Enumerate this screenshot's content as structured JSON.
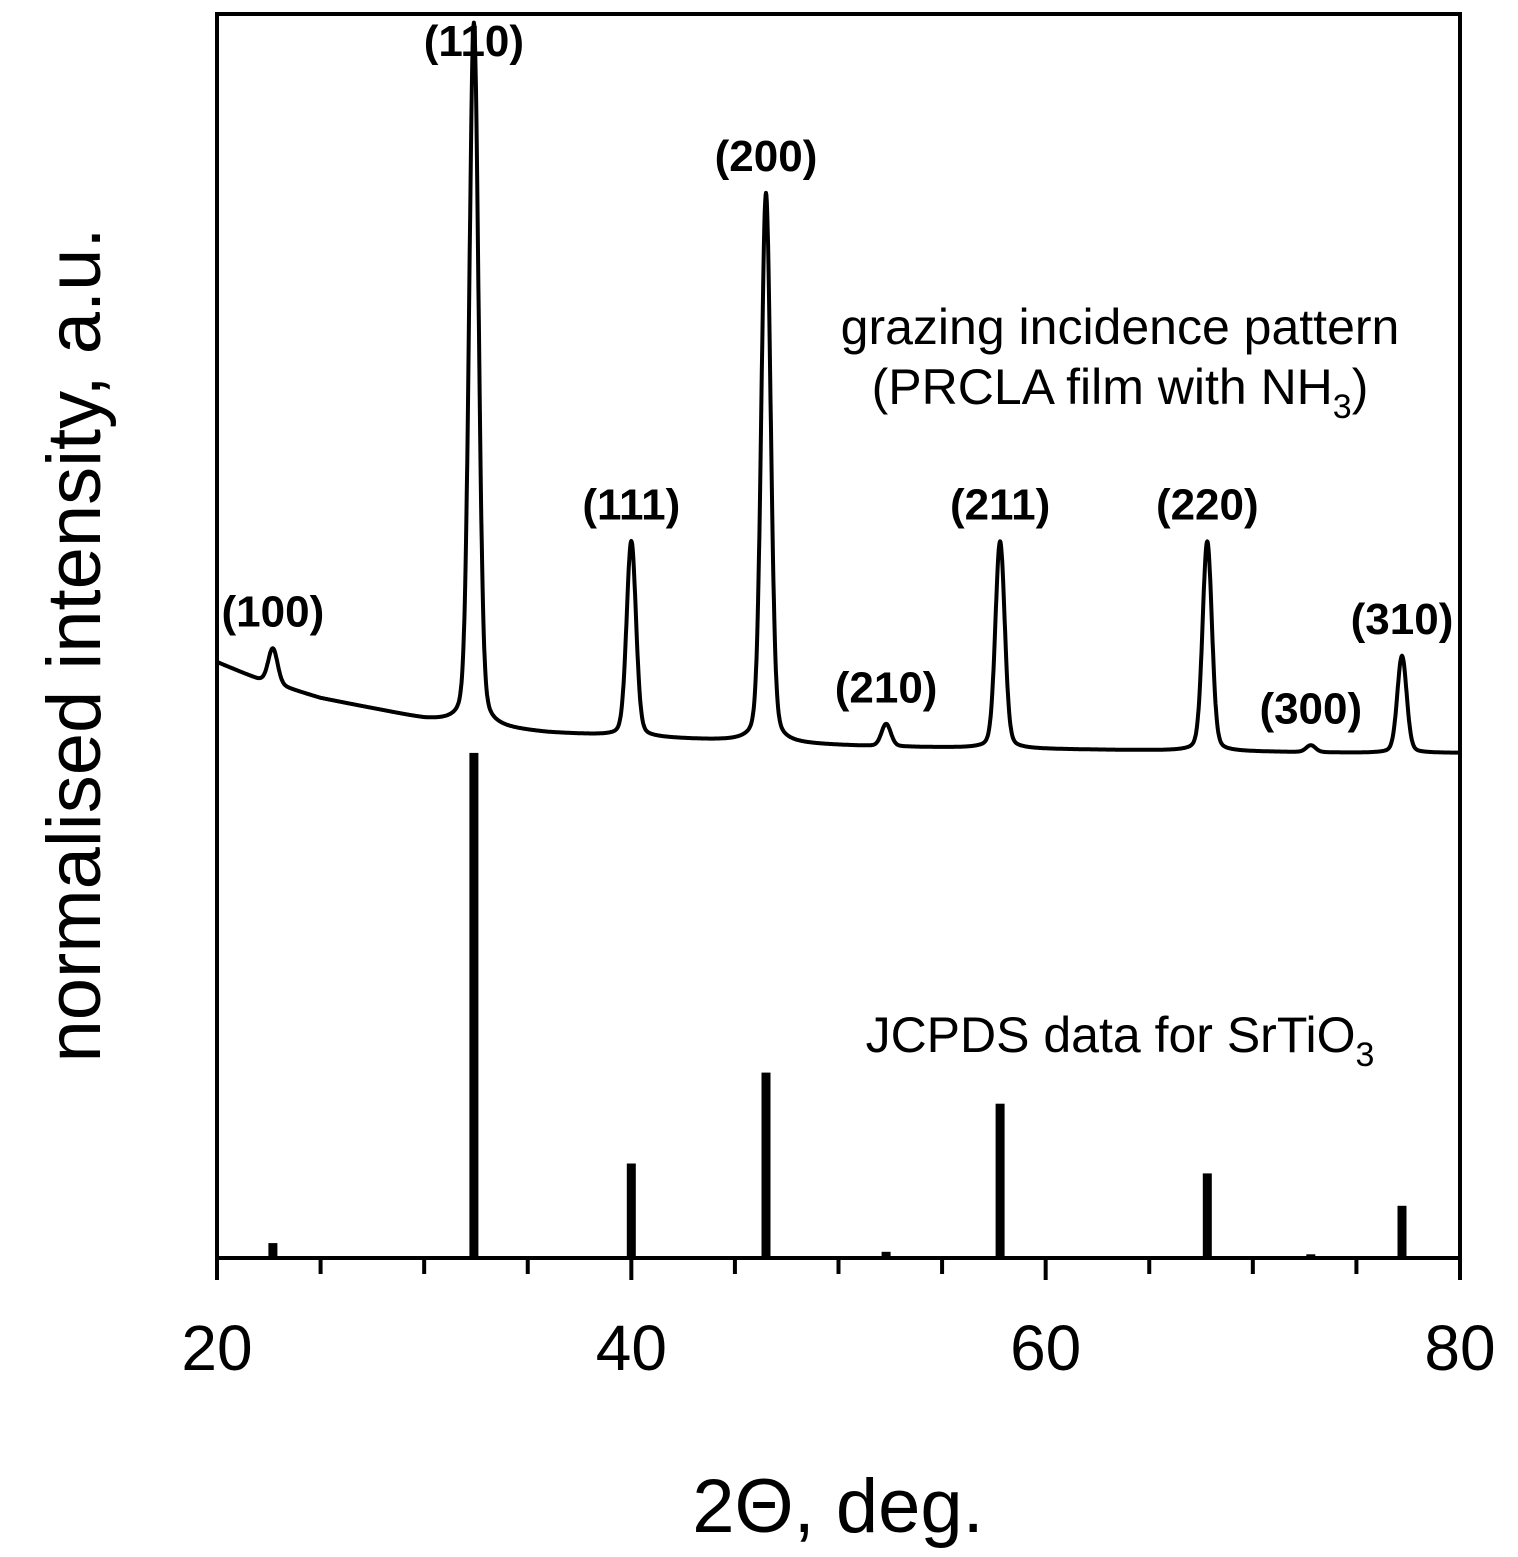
{
  "chart_data": {
    "type": "line",
    "xlabel": "2Θ, deg.",
    "ylabel": "normalised intensity, a.u.",
    "xlim": [
      20,
      80
    ],
    "ylim": [
      0,
      100
    ],
    "x_ticks": [
      "20",
      "40",
      "60",
      "80"
    ],
    "y_ticks": [],
    "grid": false,
    "legend": "none",
    "annotations": [
      {
        "key": "gi1",
        "text": "grazing incidence pattern"
      },
      {
        "key": "gi2",
        "text": "(PRCLA film with NH",
        "sub": "3",
        "tail": ")"
      },
      {
        "key": "jc",
        "text": "JCPDS data for SrTiO",
        "sub": "3",
        "tail": ""
      }
    ],
    "series": [
      {
        "kind": "pattern",
        "baseline": [
          [
            20,
            47.9
          ],
          [
            22,
            46.5
          ],
          [
            25,
            45.0
          ],
          [
            28,
            44.0
          ],
          [
            30,
            43.3
          ],
          [
            33,
            42.6
          ],
          [
            36,
            42.2
          ],
          [
            40,
            41.9
          ],
          [
            44,
            41.6
          ],
          [
            48,
            41.3
          ],
          [
            52,
            41.1
          ],
          [
            56,
            41.0
          ],
          [
            60,
            40.9
          ],
          [
            65,
            40.8
          ],
          [
            70,
            40.7
          ],
          [
            75,
            40.6
          ],
          [
            80,
            40.6
          ]
        ],
        "peaks": [
          {
            "label": "(100)",
            "x": 22.7,
            "y": 49.0
          },
          {
            "label": "(110)",
            "x": 32.4,
            "y": 99.3
          },
          {
            "label": "(111)",
            "x": 40.0,
            "y": 57.6
          },
          {
            "label": "(200)",
            "x": 46.5,
            "y": 85.6
          },
          {
            "label": "(210)",
            "x": 52.3,
            "y": 42.9
          },
          {
            "label": "(211)",
            "x": 57.8,
            "y": 57.6
          },
          {
            "label": "(220)",
            "x": 67.8,
            "y": 57.6
          },
          {
            "label": "(300)",
            "x": 72.8,
            "y": 41.2
          },
          {
            "label": "(310)",
            "x": 77.2,
            "y": 48.4
          }
        ]
      },
      {
        "kind": "sticks",
        "peaks": [
          {
            "x": 22.7,
            "y": 1.2
          },
          {
            "x": 32.4,
            "y": 40.6
          },
          {
            "x": 40.0,
            "y": 7.6
          },
          {
            "x": 46.5,
            "y": 14.9
          },
          {
            "x": 52.3,
            "y": 0.5
          },
          {
            "x": 57.8,
            "y": 12.4
          },
          {
            "x": 67.8,
            "y": 6.8
          },
          {
            "x": 72.8,
            "y": 0.3
          },
          {
            "x": 77.2,
            "y": 4.2
          }
        ]
      }
    ]
  }
}
